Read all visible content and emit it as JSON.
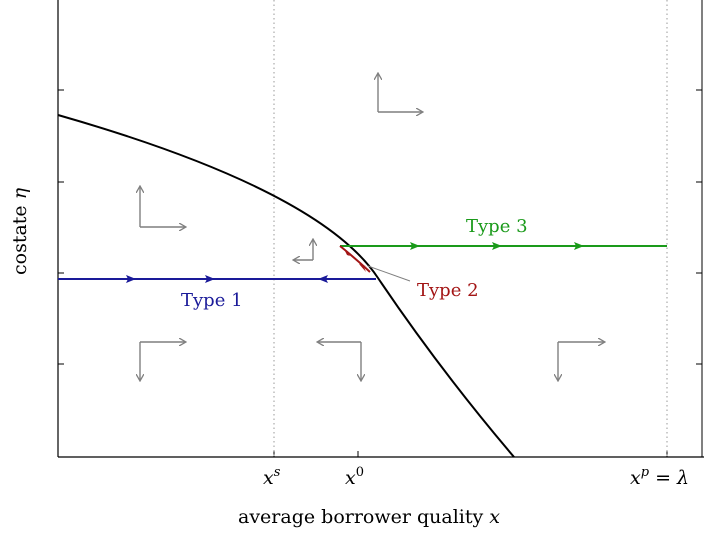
{
  "figure": {
    "xlabel": "average borrower quality",
    "xlabel_var": "x",
    "ylabel": "costate",
    "ylabel_var": "η",
    "ticks": {
      "xs": {
        "base": "x",
        "sup": "s"
      },
      "x0": {
        "base": "x",
        "sup": "0"
      },
      "xp": {
        "base": "x",
        "sup": "p",
        "suffix": " = λ"
      }
    },
    "labels": {
      "type1": "Type 1",
      "type2": "Type 2",
      "type3": "Type 3"
    },
    "colors": {
      "type1": "#1a1a99",
      "type2": "#a31515",
      "type3": "#1a9a1a",
      "curve": "#000000",
      "arrows": "#7f7f7f",
      "dotted": "#9a9a9a"
    }
  }
}
